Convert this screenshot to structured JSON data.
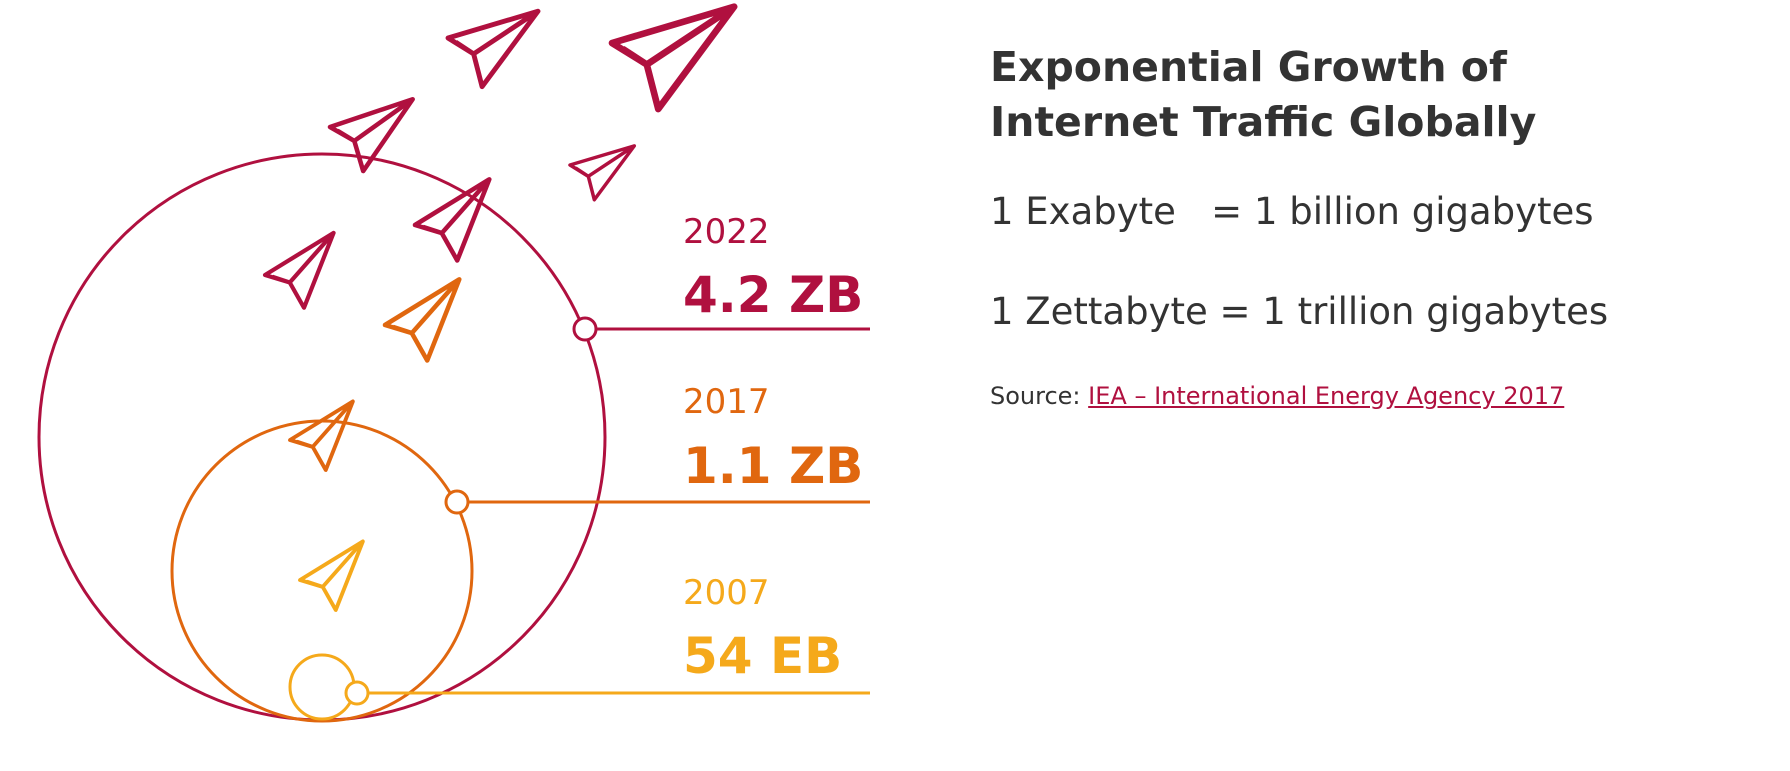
{
  "title": "Exponential Growth of Internet Traffic Globally",
  "definitions": {
    "exabyte": "1 Exabyte   = 1 billion gigabytes",
    "zettabyte": "1 Zettabyte = 1 trillion gigabytes"
  },
  "source": {
    "label": "Source: ",
    "link_text": "IEA – International Energy Agency 2017"
  },
  "chart_data": {
    "type": "bubble-infographic",
    "title": "Exponential Growth of Internet Traffic Globally",
    "series": [
      {
        "year": "2007",
        "value_label": "54 EB",
        "value_eb": 54,
        "color": "#f5a91b"
      },
      {
        "year": "2017",
        "value_label": "1.1 ZB",
        "value_eb": 1100,
        "color": "#e0670f"
      },
      {
        "year": "2022",
        "value_label": "4.2 ZB",
        "value_eb": 4200,
        "color": "#b0103f"
      }
    ],
    "icons": "paper-plane-icon"
  }
}
